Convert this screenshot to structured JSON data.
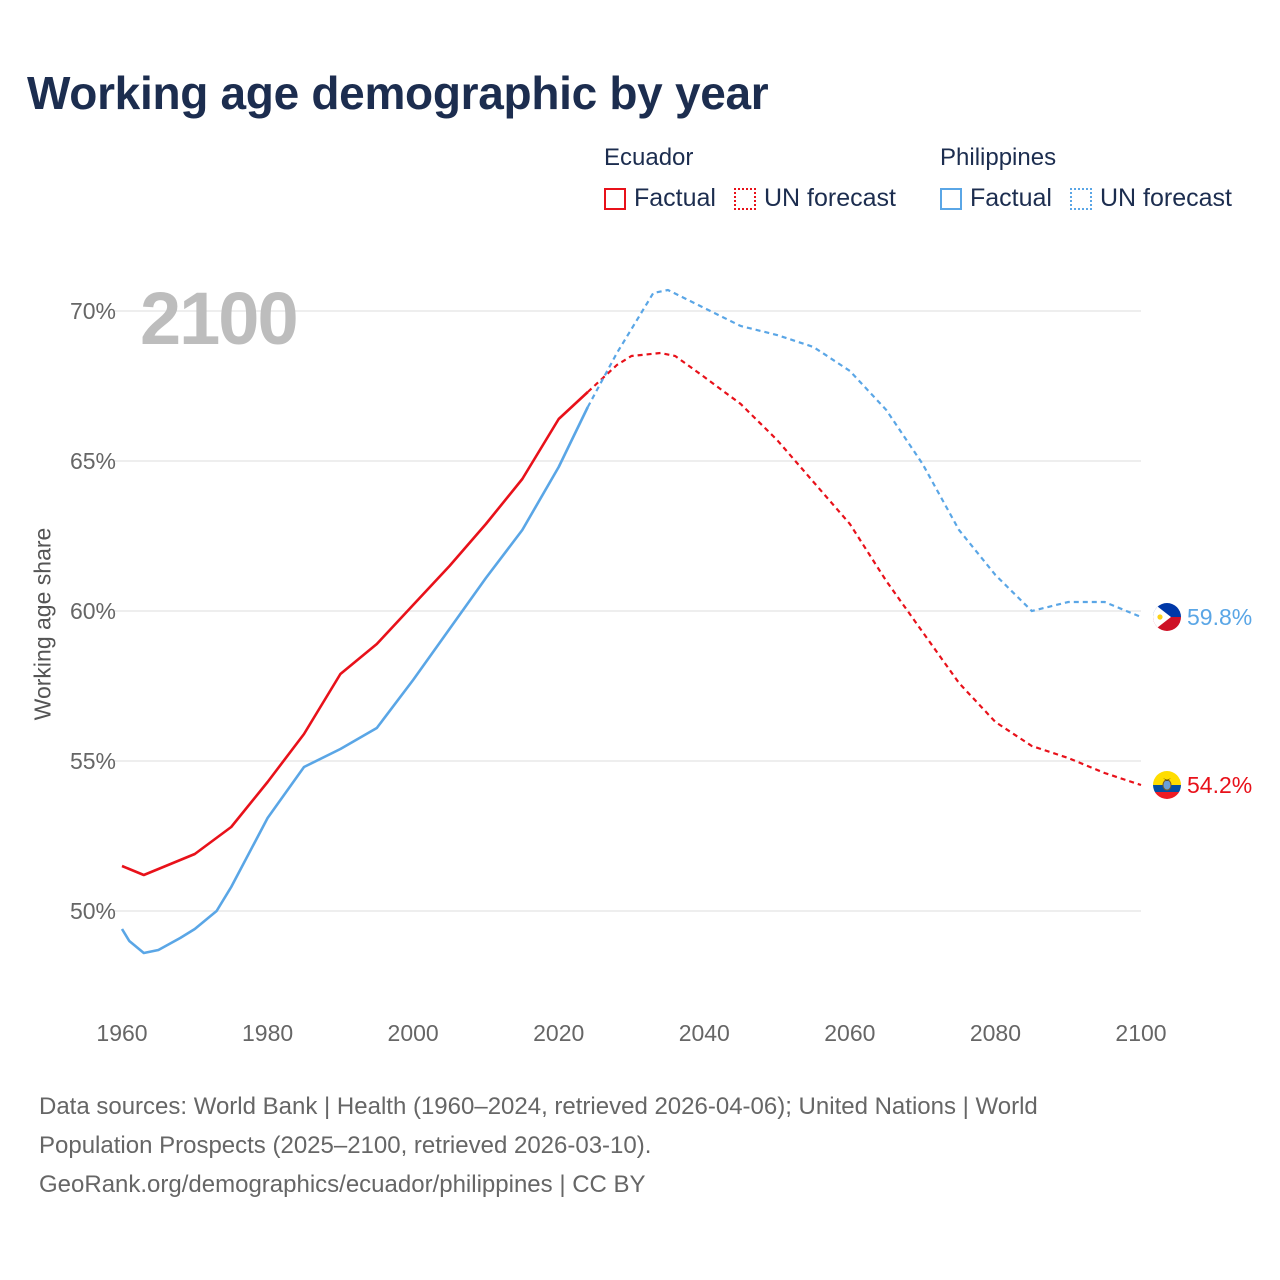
{
  "title": "Working age demographic by year",
  "year_display": "2100",
  "legend": {
    "groups": [
      {
        "name": "Ecuador",
        "color": "#e8111a",
        "factual": "Factual",
        "forecast": "UN forecast"
      },
      {
        "name": "Philippines",
        "color": "#5aa6e6",
        "factual": "Factual",
        "forecast": "UN forecast"
      }
    ]
  },
  "footer": {
    "line1": "Data sources: World Bank | Health (1960–2024, retrieved 2026-04-06); United Nations | World",
    "line2": "Population Prospects (2025–2100, retrieved 2026-03-10).",
    "line3": "GeoRank.org/demographics/ecuador/philippines | CC BY"
  },
  "chart_data": {
    "type": "line",
    "title": "Working age demographic by year",
    "xlabel": "",
    "ylabel": "Working age share",
    "xlim": [
      1960,
      2100
    ],
    "ylim": [
      48,
      71.5
    ],
    "xticks": [
      1960,
      1980,
      2000,
      2020,
      2040,
      2060,
      2080,
      2100
    ],
    "xtick_labels": [
      "1960",
      "1980",
      "2000",
      "2020",
      "2040",
      "2060",
      "2080",
      "2100"
    ],
    "yticks": [
      50,
      55,
      60,
      65,
      70
    ],
    "ytick_labels": [
      "50%",
      "55%",
      "60%",
      "65%",
      "70%"
    ],
    "grid": true,
    "series": [
      {
        "name": "Ecuador",
        "color": "#e8111a",
        "end_label": "54.2%",
        "factual": [
          [
            1960,
            51.5
          ],
          [
            1963,
            51.2
          ],
          [
            1965,
            51.4
          ],
          [
            1970,
            51.9
          ],
          [
            1975,
            52.8
          ],
          [
            1980,
            54.3
          ],
          [
            1985,
            55.9
          ],
          [
            1990,
            57.9
          ],
          [
            1995,
            58.9
          ],
          [
            2000,
            60.2
          ],
          [
            2005,
            61.5
          ],
          [
            2010,
            62.9
          ],
          [
            2015,
            64.4
          ],
          [
            2020,
            66.4
          ],
          [
            2024,
            67.3
          ]
        ],
        "forecast": [
          [
            2024,
            67.3
          ],
          [
            2028,
            68.2
          ],
          [
            2030,
            68.5
          ],
          [
            2034,
            68.6
          ],
          [
            2036,
            68.5
          ],
          [
            2040,
            67.8
          ],
          [
            2045,
            66.9
          ],
          [
            2050,
            65.7
          ],
          [
            2055,
            64.3
          ],
          [
            2060,
            62.9
          ],
          [
            2065,
            61.0
          ],
          [
            2070,
            59.3
          ],
          [
            2075,
            57.6
          ],
          [
            2080,
            56.3
          ],
          [
            2085,
            55.5
          ],
          [
            2090,
            55.1
          ],
          [
            2095,
            54.6
          ],
          [
            2100,
            54.2
          ]
        ]
      },
      {
        "name": "Philippines",
        "color": "#5aa6e6",
        "end_label": "59.8%",
        "factual": [
          [
            1960,
            49.4
          ],
          [
            1961,
            49.0
          ],
          [
            1963,
            48.6
          ],
          [
            1965,
            48.7
          ],
          [
            1968,
            49.1
          ],
          [
            1970,
            49.4
          ],
          [
            1973,
            50.0
          ],
          [
            1975,
            50.8
          ],
          [
            1980,
            53.1
          ],
          [
            1985,
            54.8
          ],
          [
            1990,
            55.4
          ],
          [
            1995,
            56.1
          ],
          [
            2000,
            57.7
          ],
          [
            2005,
            59.4
          ],
          [
            2010,
            61.1
          ],
          [
            2015,
            62.7
          ],
          [
            2020,
            64.8
          ],
          [
            2024,
            66.8
          ]
        ],
        "forecast": [
          [
            2024,
            66.8
          ],
          [
            2028,
            68.6
          ],
          [
            2030,
            69.4
          ],
          [
            2033,
            70.6
          ],
          [
            2035,
            70.7
          ],
          [
            2040,
            70.1
          ],
          [
            2045,
            69.5
          ],
          [
            2050,
            69.2
          ],
          [
            2055,
            68.8
          ],
          [
            2060,
            68.0
          ],
          [
            2065,
            66.7
          ],
          [
            2070,
            64.9
          ],
          [
            2075,
            62.7
          ],
          [
            2080,
            61.2
          ],
          [
            2085,
            60.0
          ],
          [
            2090,
            60.3
          ],
          [
            2095,
            60.3
          ],
          [
            2100,
            59.8
          ]
        ]
      }
    ]
  }
}
